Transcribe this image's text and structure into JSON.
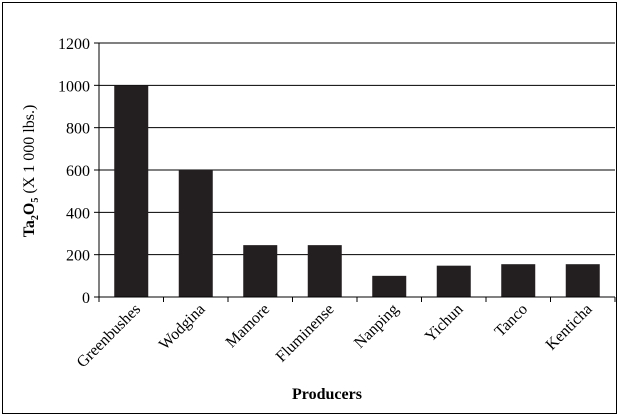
{
  "chart_data": {
    "type": "bar",
    "categories": [
      "Greenbushes",
      "Wodgina",
      "Mamore",
      "Fluminense",
      "Nanping",
      "Yichun",
      "Tanco",
      "Kenticha"
    ],
    "series": [
      {
        "values": [
          1000,
          600,
          245,
          245,
          100,
          148,
          155,
          155
        ]
      }
    ],
    "title": "",
    "xlabel": "Producers",
    "ylabel": {
      "base": "Ta",
      "sub1": "2",
      "mid": "O",
      "sub2": "5",
      "rest": " (X 1 000 lbs.)"
    },
    "ylim": [
      0,
      1200
    ],
    "yticks": [
      "0",
      "200",
      "400",
      "600",
      "800",
      "1000",
      "1200"
    ],
    "grid": true,
    "legend": "none",
    "bar_color": "#231f20",
    "grid_color": "#000000"
  }
}
